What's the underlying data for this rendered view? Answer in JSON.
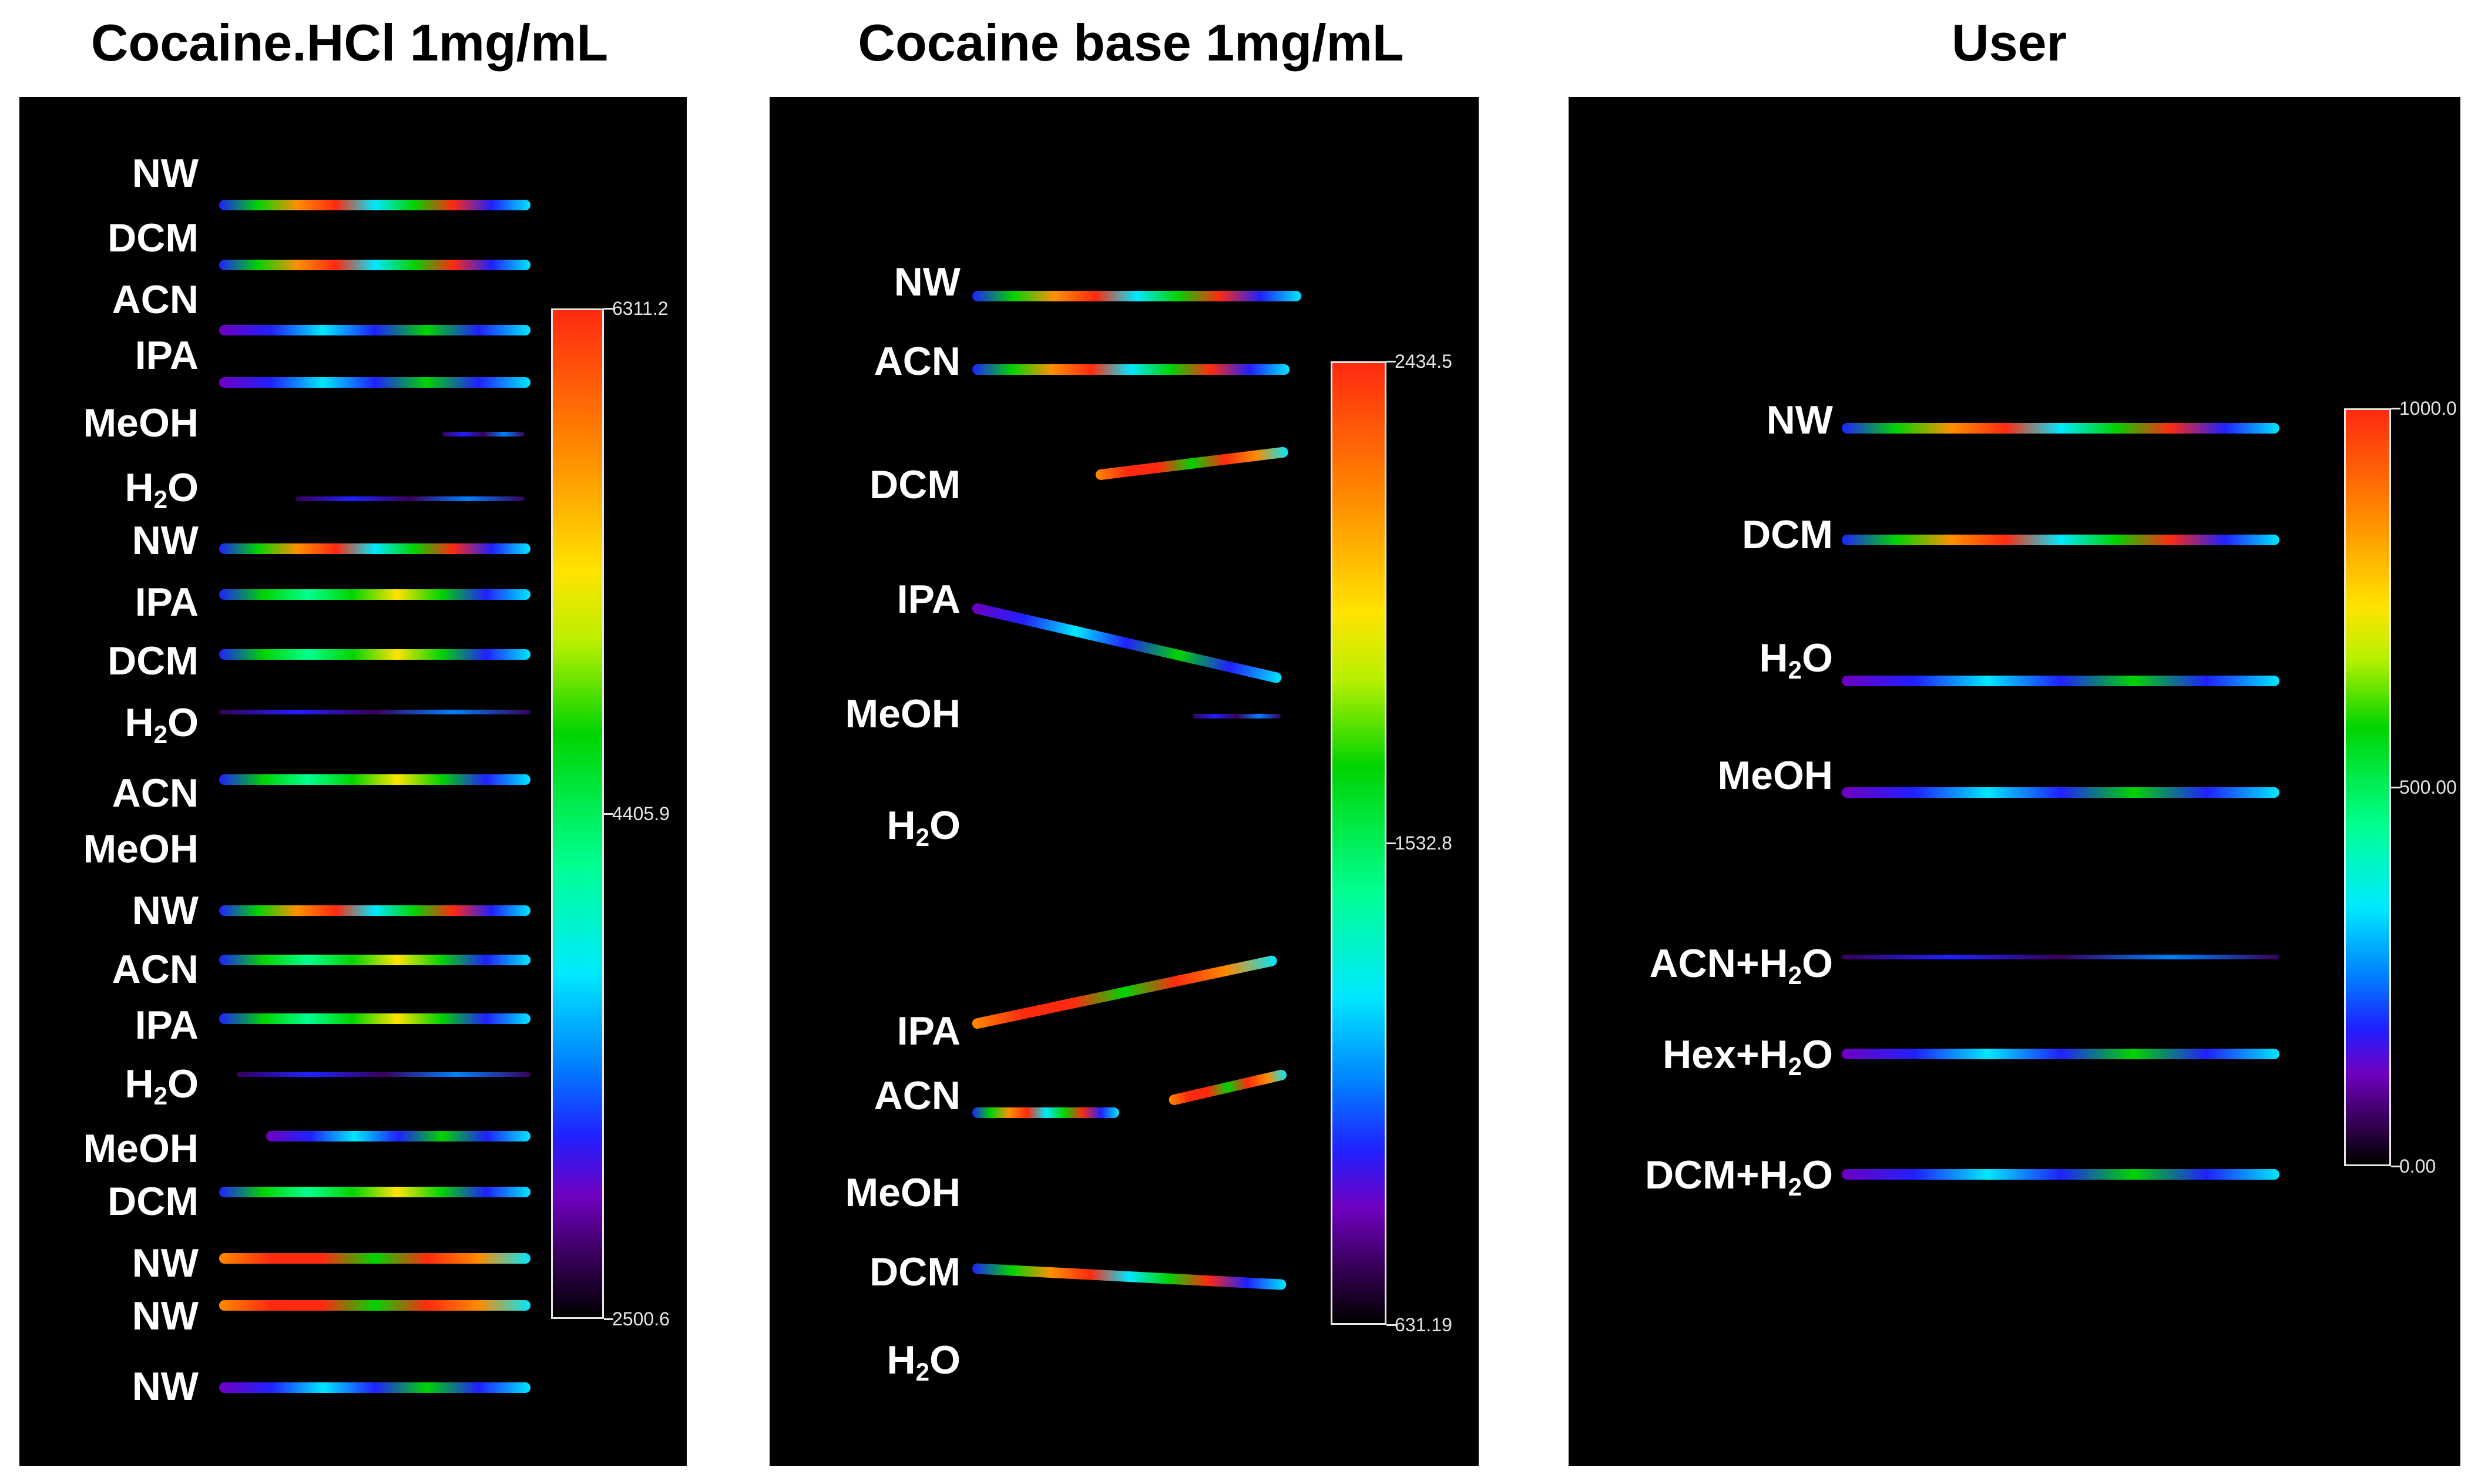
{
  "titles": [
    "Cocaine.HCl 1mg/mL",
    "Cocaine base 1mg/mL",
    "User"
  ],
  "panels": [
    {
      "labels": [
        "NW",
        "DCM",
        "ACN",
        "IPA",
        "MeOH",
        "H2O",
        "NW",
        "IPA",
        "DCM",
        "H2O",
        "ACN",
        "MeOH",
        "NW",
        "ACN",
        "IPA",
        "H2O",
        "MeOH",
        "DCM",
        "NW",
        "NW",
        "NW"
      ],
      "colorbar": {
        "max": "6311.2",
        "mid": "4405.9",
        "min": "2500.6"
      }
    },
    {
      "labels": [
        "NW",
        "ACN",
        "DCM",
        "IPA",
        "MeOH",
        "H2O",
        "IPA",
        "ACN",
        "MeOH",
        "DCM",
        "H2O"
      ],
      "colorbar": {
        "max": "2434.5",
        "mid": "1532.8",
        "min": "631.19"
      }
    },
    {
      "labels": [
        "NW",
        "DCM",
        "H2O",
        "MeOH",
        "ACN+H2O",
        "Hex+H2O",
        "DCM+H2O"
      ],
      "colorbar": {
        "max": "1000.0",
        "mid": "500.00",
        "min": "0.00"
      }
    }
  ],
  "colors": {
    "panel_background": "#000000",
    "label": "#ffffff",
    "colorbar_frame": "#e6e6e6"
  }
}
